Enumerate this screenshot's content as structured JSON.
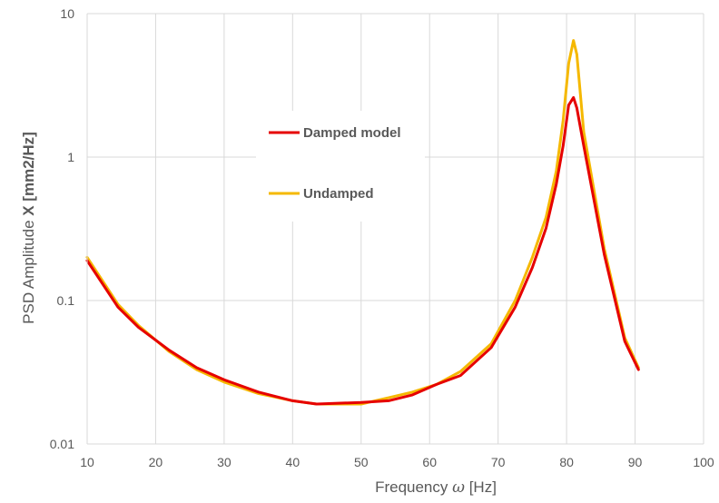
{
  "chart_data": {
    "type": "line",
    "title": "",
    "xlabel": {
      "prefix": "Frequency ",
      "symbol": "ω",
      "suffix": " [Hz]"
    },
    "ylabel": {
      "prefix": "PSD Amplitude ",
      "bold": "X [mm2/Hz]"
    },
    "xlim": [
      10,
      100
    ],
    "ylim": [
      0.01,
      10
    ],
    "yscale": "log",
    "grid": true,
    "legend_placement": "center-left",
    "x_ticks": [
      "10",
      "20",
      "30",
      "40",
      "50",
      "60",
      "70",
      "80",
      "90",
      "100"
    ],
    "y_ticks": [
      "0.01",
      "0.1",
      "1",
      "10"
    ],
    "series": [
      {
        "name": "Damped model",
        "color": "#e60000",
        "x": [
          10,
          14.5,
          17.5,
          22,
          26,
          30,
          35,
          40,
          43.5,
          50,
          54,
          57.5,
          61,
          64.5,
          69,
          72.5,
          75,
          77,
          78.5,
          79.5,
          80.3,
          81,
          81.5,
          82.5,
          85.5,
          88.5,
          90.5
        ],
        "y": [
          0.19,
          0.09,
          0.065,
          0.045,
          0.034,
          0.028,
          0.023,
          0.02,
          0.019,
          0.0195,
          0.02,
          0.022,
          0.026,
          0.03,
          0.047,
          0.09,
          0.17,
          0.32,
          0.65,
          1.2,
          2.3,
          2.6,
          2.2,
          1.2,
          0.21,
          0.052,
          0.033
        ]
      },
      {
        "name": "Undamped",
        "color": "#f5b800",
        "x": [
          10,
          14.5,
          17.5,
          22,
          26,
          30,
          35,
          40,
          43.5,
          50,
          54,
          57.5,
          61,
          64.5,
          69,
          72.5,
          75,
          77,
          78.5,
          79.5,
          80.3,
          81,
          81.5,
          82.5,
          85.5,
          88.5,
          90.5
        ],
        "y": [
          0.2,
          0.094,
          0.067,
          0.044,
          0.033,
          0.027,
          0.0225,
          0.02,
          0.019,
          0.019,
          0.021,
          0.023,
          0.026,
          0.032,
          0.05,
          0.1,
          0.2,
          0.38,
          0.8,
          1.8,
          4.5,
          6.5,
          5.2,
          1.5,
          0.23,
          0.055,
          0.034
        ]
      }
    ]
  }
}
